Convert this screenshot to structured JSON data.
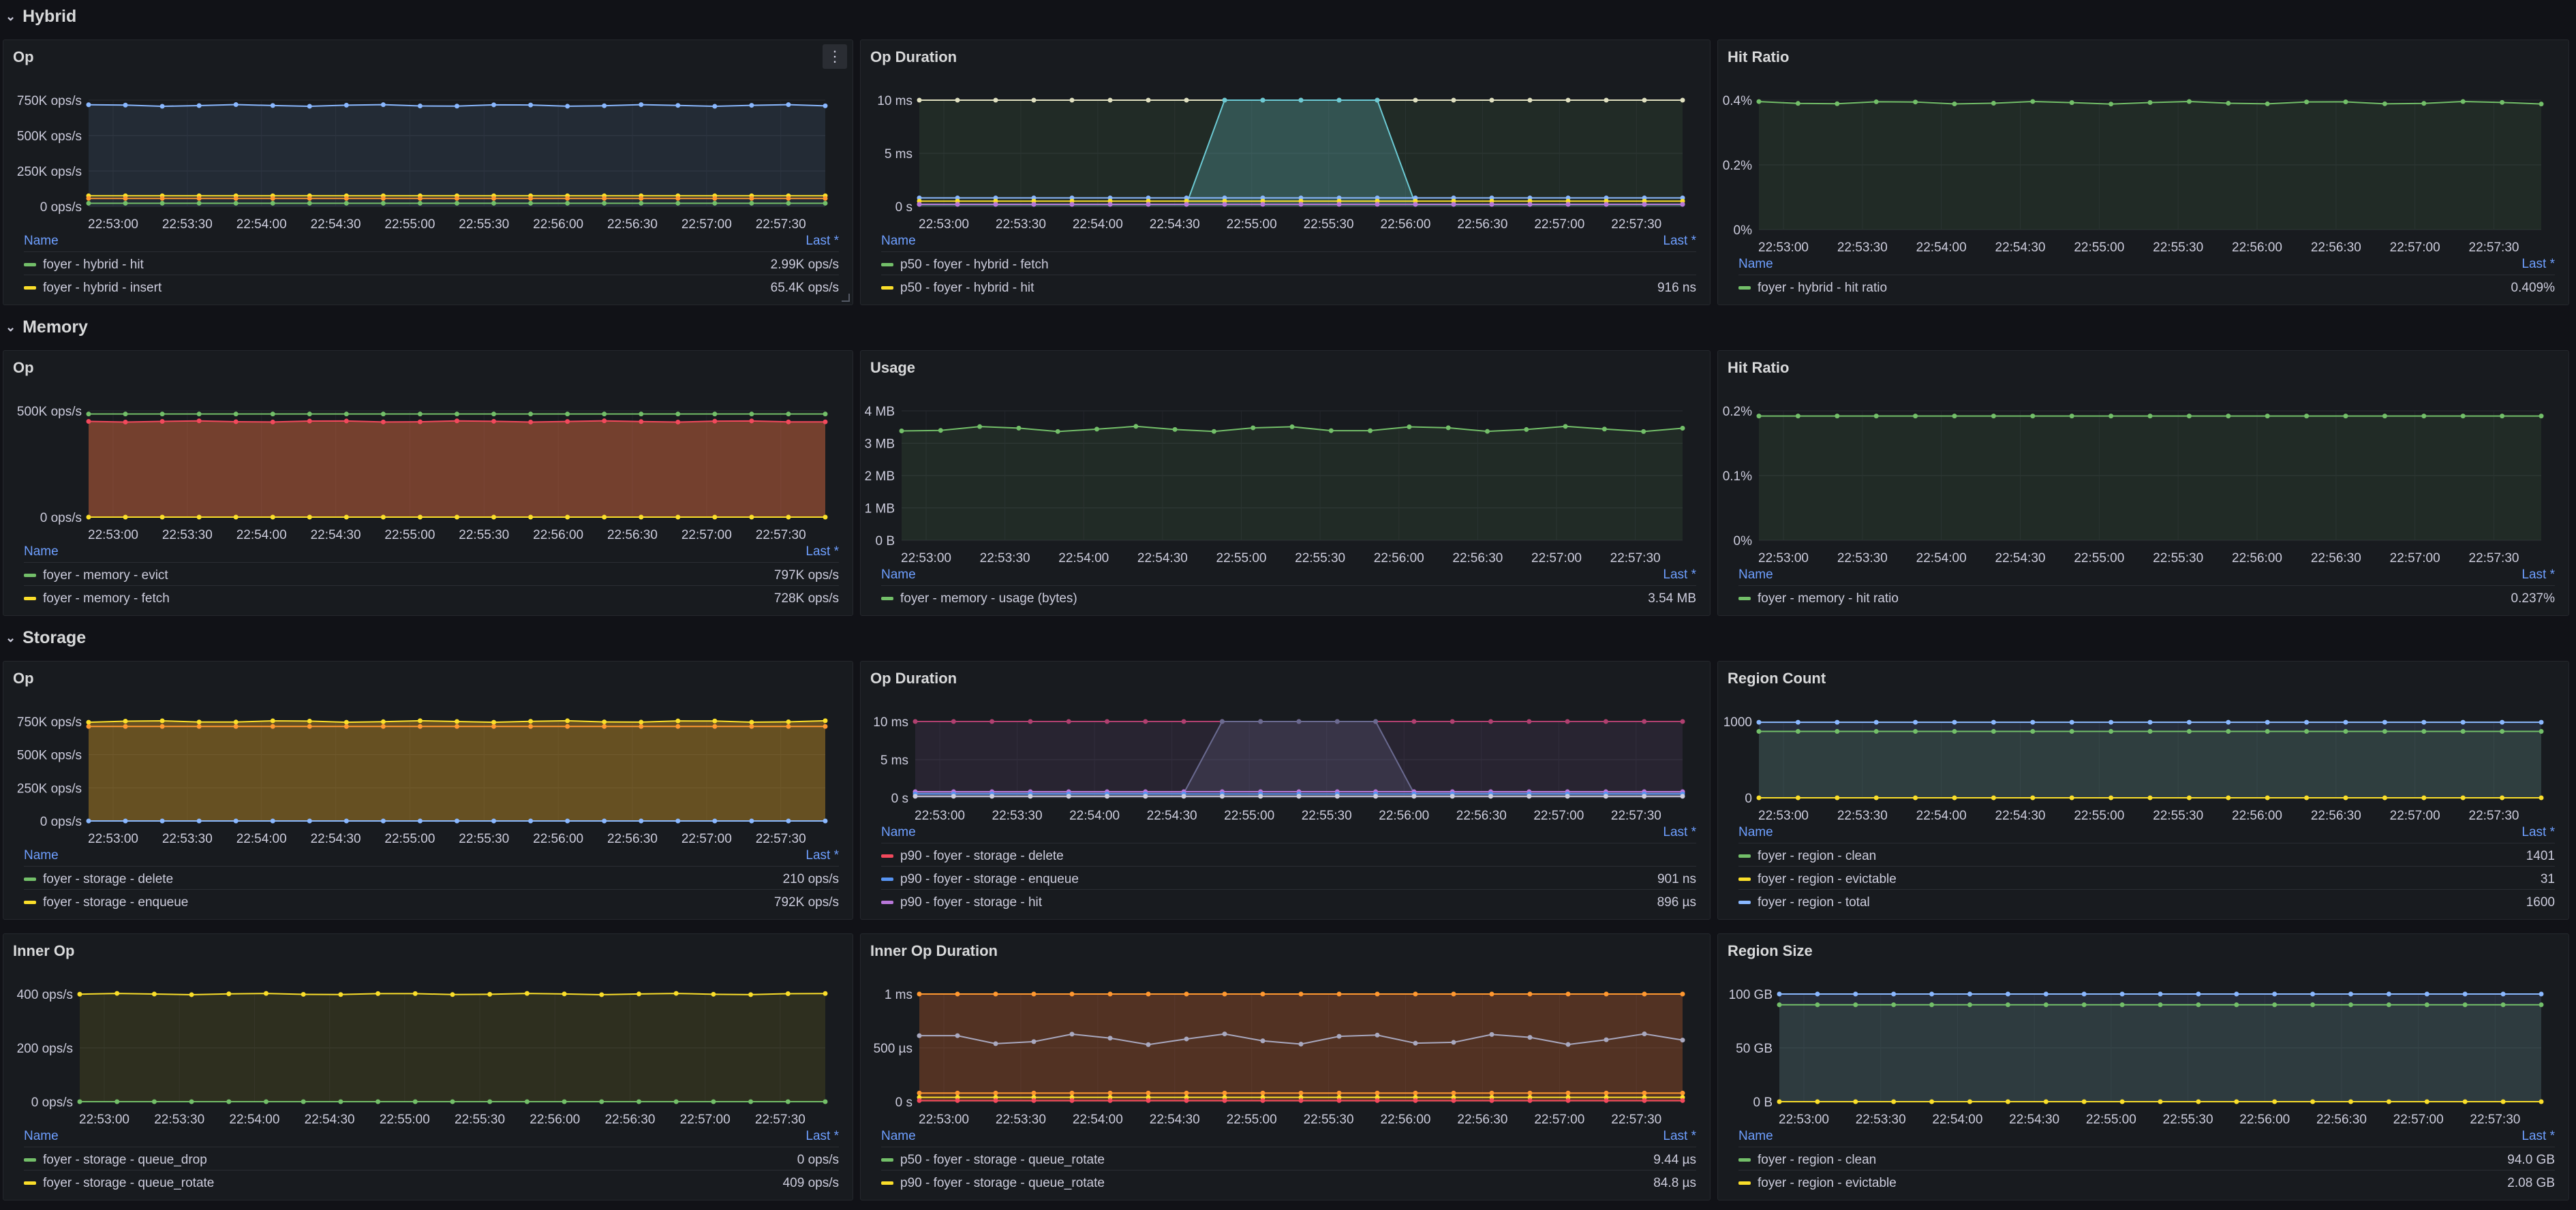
{
  "rows": [
    {
      "title": "Hybrid"
    },
    {
      "title": "Memory"
    },
    {
      "title": "Storage"
    }
  ],
  "legend_header": {
    "name": "Name",
    "last": "Last *"
  },
  "x_ticks": [
    "22:53:00",
    "22:53:30",
    "22:54:00",
    "22:54:30",
    "22:55:00",
    "22:55:30",
    "22:56:00",
    "22:56:30",
    "22:57:00",
    "22:57:30"
  ],
  "panels": [
    {
      "title": "Op",
      "menu_icon": "⋮",
      "y_ticks": [
        "750K ops/s",
        "500K ops/s",
        "250K ops/s",
        "0 ops/s"
      ],
      "legend": [
        {
          "name": "foyer - hybrid - hit",
          "value": "2.99K ops/s",
          "color": "#73bf69"
        },
        {
          "name": "foyer - hybrid - insert",
          "value": "65.4K ops/s",
          "color": "#fade2a"
        }
      ]
    },
    {
      "title": "Op Duration",
      "y_ticks": [
        "10 ms",
        "5 ms",
        "0 s"
      ],
      "legend": [
        {
          "name": "p50 - foyer - hybrid - fetch",
          "value": "",
          "color": "#73bf69"
        },
        {
          "name": "p50 - foyer - hybrid - hit",
          "value": "916 ns",
          "color": "#fade2a"
        }
      ]
    },
    {
      "title": "Hit Ratio",
      "y_ticks": [
        "0.4%",
        "0.2%",
        "0%"
      ],
      "legend": [
        {
          "name": "foyer - hybrid - hit ratio",
          "value": "0.409%",
          "color": "#73bf69"
        }
      ]
    },
    {
      "title": "Op",
      "y_ticks": [
        "500K ops/s",
        "0 ops/s"
      ],
      "legend": [
        {
          "name": "foyer - memory - evict",
          "value": "797K ops/s",
          "color": "#73bf69"
        },
        {
          "name": "foyer - memory - fetch",
          "value": "728K ops/s",
          "color": "#fade2a"
        }
      ]
    },
    {
      "title": "Usage",
      "y_ticks": [
        "4 MB",
        "3 MB",
        "2 MB",
        "1 MB",
        "0 B"
      ],
      "legend": [
        {
          "name": "foyer - memory - usage (bytes)",
          "value": "3.54 MB",
          "color": "#73bf69"
        }
      ]
    },
    {
      "title": "Hit Ratio",
      "y_ticks": [
        "0.2%",
        "0.1%",
        "0%"
      ],
      "legend": [
        {
          "name": "foyer - memory - hit ratio",
          "value": "0.237%",
          "color": "#73bf69"
        }
      ]
    },
    {
      "title": "Op",
      "y_ticks": [
        "750K ops/s",
        "500K ops/s",
        "250K ops/s",
        "0 ops/s"
      ],
      "legend": [
        {
          "name": "foyer - storage - delete",
          "value": "210 ops/s",
          "color": "#73bf69"
        },
        {
          "name": "foyer - storage - enqueue",
          "value": "792K ops/s",
          "color": "#fade2a"
        }
      ]
    },
    {
      "title": "Op Duration",
      "y_ticks": [
        "10 ms",
        "5 ms",
        "0 s"
      ],
      "legend": [
        {
          "name": "p90 - foyer - storage - delete",
          "value": "",
          "color": "#f2495c"
        },
        {
          "name": "p90 - foyer - storage - enqueue",
          "value": "901 ns",
          "color": "#5794f2"
        },
        {
          "name": "p90 - foyer - storage - hit",
          "value": "896 µs",
          "color": "#b877d9"
        }
      ]
    },
    {
      "title": "Region Count",
      "y_ticks": [
        "1000",
        "0"
      ],
      "legend": [
        {
          "name": "foyer - region - clean",
          "value": "1401",
          "color": "#73bf69"
        },
        {
          "name": "foyer - region - evictable",
          "value": "31",
          "color": "#fade2a"
        },
        {
          "name": "foyer - region - total",
          "value": "1600",
          "color": "#8ab8ff"
        }
      ]
    },
    {
      "title": "Inner Op",
      "y_ticks": [
        "400 ops/s",
        "200 ops/s",
        "0 ops/s"
      ],
      "legend": [
        {
          "name": "foyer - storage - queue_drop",
          "value": "0 ops/s",
          "color": "#73bf69"
        },
        {
          "name": "foyer - storage - queue_rotate",
          "value": "409 ops/s",
          "color": "#fade2a"
        }
      ]
    },
    {
      "title": "Inner Op Duration",
      "y_ticks": [
        "1 ms",
        "500 µs",
        "0 s"
      ],
      "legend": [
        {
          "name": "p50 - foyer - storage - queue_rotate",
          "value": "9.44 µs",
          "color": "#73bf69"
        },
        {
          "name": "p90 - foyer - storage - queue_rotate",
          "value": "84.8 µs",
          "color": "#fade2a"
        }
      ]
    },
    {
      "title": "Region Size",
      "y_ticks": [
        "100 GB",
        "50 GB",
        "0 B"
      ],
      "legend": [
        {
          "name": "foyer - region - clean",
          "value": "94.0 GB",
          "color": "#73bf69"
        },
        {
          "name": "foyer - region - evictable",
          "value": "2.08 GB",
          "color": "#fade2a"
        }
      ]
    }
  ]
}
